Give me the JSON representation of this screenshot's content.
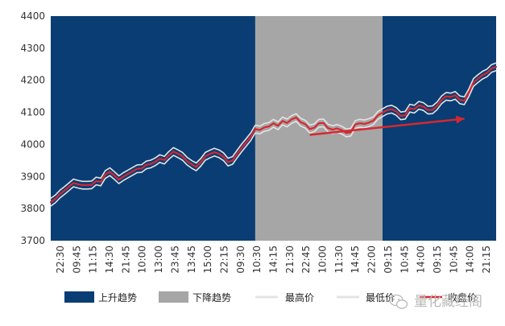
{
  "chart_data": {
    "type": "line",
    "ylim": [
      3700,
      4400
    ],
    "yticks": [
      "4400",
      "4300",
      "4200",
      "4100",
      "4000",
      "3900",
      "3800",
      "3700"
    ],
    "x_tick_labels": [
      "22:30",
      "09:45",
      "11:15",
      "14:30",
      "21:45",
      "10:00",
      "13:00",
      "23:45",
      "13:45",
      "15:00",
      "22:15",
      "09:30",
      "10:30",
      "14:15",
      "21:30",
      "22:45",
      "10:00",
      "11:30",
      "14:45",
      "22:00",
      "09:15",
      "10:45",
      "14:00",
      "09:15",
      "10:45",
      "14:00",
      "21:15"
    ],
    "x_count": 99,
    "regimes": [
      {
        "name": "上升趋势",
        "start": 0,
        "end": 45,
        "color": "#0a3d73"
      },
      {
        "name": "下降趋势",
        "start": 45,
        "end": 73,
        "color": "#a6a6a6"
      },
      {
        "name": "上升趋势",
        "start": 73,
        "end": 98,
        "color": "#0a3d73"
      }
    ],
    "series": [
      {
        "name": "最高价",
        "color": "#e4e4e4",
        "values": [
          3832,
          3842,
          3857,
          3868,
          3880,
          3892,
          3888,
          3885,
          3885,
          3886,
          3898,
          3895,
          3918,
          3927,
          3915,
          3902,
          3912,
          3920,
          3928,
          3936,
          3937,
          3948,
          3951,
          3958,
          3968,
          3963,
          3978,
          3990,
          3983,
          3975,
          3960,
          3950,
          3942,
          3956,
          3975,
          3982,
          3988,
          3983,
          3974,
          3957,
          3962,
          3982,
          4001,
          4018,
          4036,
          4060,
          4057,
          4065,
          4068,
          4078,
          4070,
          4085,
          4079,
          4090,
          4096,
          4081,
          4075,
          4060,
          4064,
          4078,
          4079,
          4063,
          4058,
          4062,
          4057,
          4048,
          4050,
          4074,
          4078,
          4076,
          4080,
          4086,
          4103,
          4111,
          4119,
          4122,
          4115,
          4101,
          4103,
          4125,
          4122,
          4134,
          4130,
          4119,
          4120,
          4132,
          4151,
          4162,
          4160,
          4165,
          4151,
          4148,
          4173,
          4205,
          4217,
          4228,
          4235,
          4249,
          4254
        ]
      },
      {
        "name": "最低价",
        "color": "#e4e4e4",
        "values": [
          3808,
          3818,
          3833,
          3844,
          3856,
          3868,
          3864,
          3861,
          3861,
          3862,
          3874,
          3871,
          3894,
          3903,
          3891,
          3878,
          3888,
          3896,
          3904,
          3912,
          3913,
          3924,
          3927,
          3934,
          3944,
          3939,
          3954,
          3966,
          3959,
          3951,
          3936,
          3926,
          3918,
          3932,
          3951,
          3958,
          3964,
          3959,
          3950,
          3933,
          3938,
          3958,
          3977,
          3994,
          4012,
          4036,
          4033,
          4041,
          4044,
          4054,
          4046,
          4061,
          4055,
          4066,
          4072,
          4057,
          4051,
          4036,
          4040,
          4054,
          4055,
          4039,
          4034,
          4038,
          4033,
          4024,
          4026,
          4050,
          4054,
          4052,
          4056,
          4062,
          4079,
          4087,
          4095,
          4098,
          4091,
          4077,
          4079,
          4101,
          4098,
          4110,
          4106,
          4095,
          4096,
          4108,
          4127,
          4138,
          4136,
          4141,
          4127,
          4124,
          4149,
          4181,
          4193,
          4204,
          4211,
          4225,
          4230
        ]
      },
      {
        "name": "收盘价",
        "color": "#d7282f",
        "values": [
          3820,
          3830,
          3845,
          3856,
          3868,
          3880,
          3876,
          3873,
          3873,
          3874,
          3886,
          3883,
          3906,
          3915,
          3903,
          3890,
          3900,
          3908,
          3916,
          3924,
          3925,
          3936,
          3939,
          3946,
          3956,
          3951,
          3966,
          3978,
          3971,
          3963,
          3948,
          3938,
          3930,
          3944,
          3963,
          3970,
          3976,
          3971,
          3962,
          3945,
          3950,
          3970,
          3989,
          4006,
          4024,
          4048,
          4045,
          4053,
          4056,
          4066,
          4058,
          4073,
          4067,
          4078,
          4084,
          4069,
          4063,
          4048,
          4052,
          4066,
          4067,
          4051,
          4046,
          4050,
          4045,
          4036,
          4038,
          4062,
          4066,
          4064,
          4068,
          4074,
          4091,
          4099,
          4107,
          4110,
          4103,
          4089,
          4091,
          4113,
          4110,
          4122,
          4118,
          4107,
          4108,
          4120,
          4139,
          4150,
          4148,
          4153,
          4139,
          4136,
          4161,
          4193,
          4205,
          4216,
          4223,
          4237,
          4242
        ]
      }
    ],
    "annotations": [
      {
        "type": "arrow",
        "color": "#d7282f",
        "from": {
          "x": 57,
          "y": 4030
        },
        "to": {
          "x": 91,
          "y": 4080
        }
      }
    ],
    "legend": {
      "position": "bottom",
      "items": [
        {
          "label": "上升趋势",
          "kind": "box",
          "color": "#0a3d73"
        },
        {
          "label": "下降趋势",
          "kind": "box",
          "color": "#a6a6a6"
        },
        {
          "label": "最高价",
          "kind": "line",
          "color": "#e4e4e4"
        },
        {
          "label": "最低价",
          "kind": "line",
          "color": "#e4e4e4"
        },
        {
          "label": "收盘价",
          "kind": "line",
          "color": "#d7282f"
        }
      ]
    }
  },
  "watermark": {
    "text": "量化藏经阁",
    "icon": "wechat-icon"
  }
}
